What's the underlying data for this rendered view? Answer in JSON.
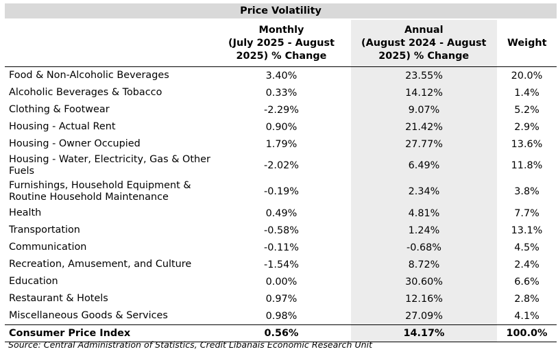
{
  "table": {
    "title": "Price Volatility",
    "headers": {
      "category": "",
      "monthly_line1": "Monthly",
      "monthly_line2": "(July 2025 - August",
      "monthly_line3": "2025) % Change",
      "annual_line1": "Annual",
      "annual_line2": "(August 2024 - August",
      "annual_line3": "2025) % Change",
      "weight": "Weight"
    },
    "rows": [
      {
        "category": "Food & Non-Alcoholic Beverages",
        "monthly": "3.40%",
        "annual": "23.55%",
        "weight": "20.0%"
      },
      {
        "category": "Alcoholic Beverages & Tobacco",
        "monthly": "0.33%",
        "annual": "14.12%",
        "weight": "1.4%"
      },
      {
        "category": "Clothing & Footwear",
        "monthly": "-2.29%",
        "annual": "9.07%",
        "weight": "5.2%"
      },
      {
        "category": "Housing - Actual Rent",
        "monthly": "0.90%",
        "annual": "21.42%",
        "weight": "2.9%"
      },
      {
        "category": "Housing - Owner Occupied",
        "monthly": "1.79%",
        "annual": "27.77%",
        "weight": "13.6%"
      },
      {
        "category": "Housing - Water, Electricity, Gas & Other Fuels",
        "monthly": "-2.02%",
        "annual": "6.49%",
        "weight": "11.8%"
      },
      {
        "category": "Furnishings, Household Equipment & Routine Household Maintenance",
        "monthly": "-0.19%",
        "annual": "2.34%",
        "weight": "3.8%"
      },
      {
        "category": "Health",
        "monthly": "0.49%",
        "annual": "4.81%",
        "weight": "7.7%"
      },
      {
        "category": "Transportation",
        "monthly": "-0.58%",
        "annual": "1.24%",
        "weight": "13.1%"
      },
      {
        "category": "Communication",
        "monthly": "-0.11%",
        "annual": "-0.68%",
        "weight": "4.5%"
      },
      {
        "category": "Recreation, Amusement, and Culture",
        "monthly": "-1.54%",
        "annual": "8.72%",
        "weight": "2.4%"
      },
      {
        "category": "Education",
        "monthly": "0.00%",
        "annual": "30.60%",
        "weight": "6.6%"
      },
      {
        "category": "Restaurant & Hotels",
        "monthly": "0.97%",
        "annual": "12.16%",
        "weight": "2.8%"
      },
      {
        "category": "Miscellaneous Goods & Services",
        "monthly": "0.98%",
        "annual": "27.09%",
        "weight": "4.1%"
      }
    ],
    "total": {
      "category": "Consumer Price Index",
      "monthly": "0.56%",
      "annual": "14.17%",
      "weight": "100.0%"
    }
  },
  "source": "Source:  Central Administration of Statistics, Credit Libanais Economic Research Unit",
  "colors": {
    "title_bg": "#d9d9d9",
    "annual_col_bg": "#ececec"
  }
}
